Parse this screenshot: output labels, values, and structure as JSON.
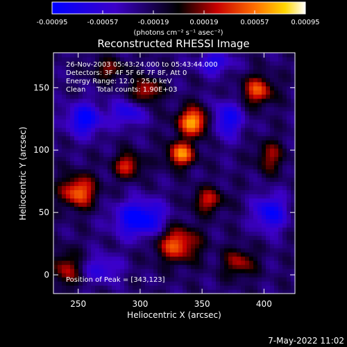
{
  "chart_data": {
    "type": "heatmap",
    "title": "Reconstructed RHESSI Image",
    "xlabel": "Heliocentric X (arcsec)",
    "ylabel": "Heliocentric Y (arcsec)",
    "xlim": [
      230,
      425
    ],
    "ylim": [
      -15,
      178
    ],
    "xticks": [
      250,
      300,
      350,
      400
    ],
    "yticks": [
      0,
      50,
      100,
      150
    ],
    "colorbar": {
      "range": [
        -0.00095,
        0.00095
      ],
      "tick_values": [
        -0.00095,
        -0.00057,
        -0.00019,
        0.00019,
        0.00057,
        0.00095
      ],
      "tick_labels": [
        "-0.00095",
        "-0.00057",
        "-0.00019",
        "0.00019",
        "0.00057",
        "0.00095"
      ],
      "unit_label": "(photons cm⁻² s⁻¹ asec⁻²)"
    },
    "annotations": [
      "26-Nov-2003 05:43:24.000 to 05:43:44.000",
      "Detectors: 3F 4F 5F 6F 7F 8F, Att 0",
      "Energy Range: 12.0 - 25.0 keV",
      "Clean     Total counts: 1.90E+03"
    ],
    "peak_label": "Position of Peak = [343,123]",
    "peak": [
      343,
      123
    ],
    "sources": [
      {
        "x": 343,
        "y": 123,
        "amp": 0.00095,
        "sx": 9,
        "sy": 8
      },
      {
        "x": 333,
        "y": 97,
        "amp": 0.00085,
        "sx": 8,
        "sy": 7
      },
      {
        "x": 250,
        "y": 67,
        "amp": 0.0008,
        "sx": 10,
        "sy": 9
      },
      {
        "x": 330,
        "y": 25,
        "amp": 0.00075,
        "sx": 12,
        "sy": 10
      },
      {
        "x": 395,
        "y": 148,
        "amp": 0.0007,
        "sx": 9,
        "sy": 8
      },
      {
        "x": 305,
        "y": 148,
        "amp": 0.0006,
        "sx": 8,
        "sy": 7
      },
      {
        "x": 290,
        "y": 88,
        "amp": 0.0006,
        "sx": 8,
        "sy": 7
      },
      {
        "x": 240,
        "y": 5,
        "amp": 0.0005,
        "sx": 8,
        "sy": 10
      },
      {
        "x": 355,
        "y": 60,
        "amp": 0.00055,
        "sx": 9,
        "sy": 7
      },
      {
        "x": 380,
        "y": 10,
        "amp": 0.0005,
        "sx": 9,
        "sy": 8
      },
      {
        "x": 405,
        "y": 95,
        "amp": 0.00045,
        "sx": 8,
        "sy": 9
      },
      {
        "x": 275,
        "y": 165,
        "amp": 0.0004,
        "sx": 10,
        "sy": 6
      },
      {
        "x": 255,
        "y": 125,
        "amp": -0.0007,
        "sx": 10,
        "sy": 9
      },
      {
        "x": 300,
        "y": 45,
        "amp": -0.0008,
        "sx": 14,
        "sy": 10
      },
      {
        "x": 370,
        "y": 125,
        "amp": -0.0006,
        "sx": 9,
        "sy": 10
      },
      {
        "x": 405,
        "y": 50,
        "amp": -0.00065,
        "sx": 9,
        "sy": 10
      },
      {
        "x": 290,
        "y": 130,
        "amp": -0.0005,
        "sx": 9,
        "sy": 7
      },
      {
        "x": 360,
        "y": 170,
        "amp": -0.0005,
        "sx": 10,
        "sy": 6
      },
      {
        "x": 270,
        "y": 5,
        "amp": -0.0004,
        "sx": 10,
        "sy": 8
      }
    ]
  },
  "footer": {
    "timestamp": "7-May-2022 11:02"
  }
}
